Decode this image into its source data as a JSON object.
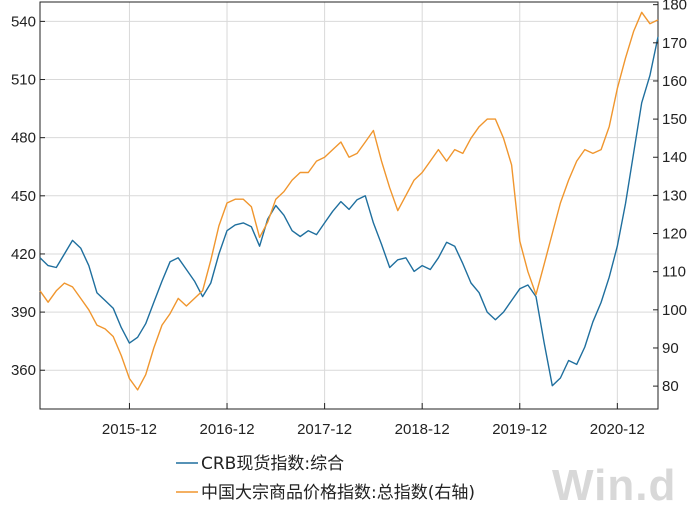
{
  "chart_data": {
    "type": "line",
    "title": "",
    "xlabel": "",
    "x_tick_labels": [
      "2015-12",
      "2016-12",
      "2017-12",
      "2018-12",
      "2019-12",
      "2020-12"
    ],
    "x_range": [
      "2015-01",
      "2021-05"
    ],
    "y_left": {
      "ylim": [
        340,
        550
      ],
      "ticks": [
        360,
        390,
        420,
        450,
        480,
        510,
        540
      ]
    },
    "y_right": {
      "ylim": [
        74,
        180.7
      ],
      "ticks": [
        80,
        90,
        100,
        110,
        120,
        130,
        140,
        150,
        160,
        170,
        180
      ]
    },
    "grid": true,
    "legend_position": "bottom",
    "series": [
      {
        "name": "CRB现货指数:综合",
        "axis": "left",
        "color": "#1f6f9e",
        "points": [
          [
            "2015-01",
            418
          ],
          [
            "2015-02",
            414
          ],
          [
            "2015-03",
            413
          ],
          [
            "2015-04",
            420
          ],
          [
            "2015-05",
            427
          ],
          [
            "2015-06",
            423
          ],
          [
            "2015-07",
            414
          ],
          [
            "2015-08",
            400
          ],
          [
            "2015-09",
            396
          ],
          [
            "2015-10",
            392
          ],
          [
            "2015-11",
            382
          ],
          [
            "2015-12",
            374
          ],
          [
            "2016-01",
            377
          ],
          [
            "2016-02",
            384
          ],
          [
            "2016-03",
            395
          ],
          [
            "2016-04",
            406
          ],
          [
            "2016-05",
            416
          ],
          [
            "2016-06",
            418
          ],
          [
            "2016-07",
            412
          ],
          [
            "2016-08",
            406
          ],
          [
            "2016-09",
            398
          ],
          [
            "2016-10",
            405
          ],
          [
            "2016-11",
            420
          ],
          [
            "2016-12",
            432
          ],
          [
            "2017-01",
            435
          ],
          [
            "2017-02",
            436
          ],
          [
            "2017-03",
            434
          ],
          [
            "2017-04",
            424
          ],
          [
            "2017-05",
            438
          ],
          [
            "2017-06",
            445
          ],
          [
            "2017-07",
            440
          ],
          [
            "2017-08",
            432
          ],
          [
            "2017-09",
            429
          ],
          [
            "2017-10",
            432
          ],
          [
            "2017-11",
            430
          ],
          [
            "2017-12",
            436
          ],
          [
            "2018-01",
            442
          ],
          [
            "2018-02",
            447
          ],
          [
            "2018-03",
            443
          ],
          [
            "2018-04",
            448
          ],
          [
            "2018-05",
            450
          ],
          [
            "2018-06",
            436
          ],
          [
            "2018-07",
            425
          ],
          [
            "2018-08",
            413
          ],
          [
            "2018-09",
            417
          ],
          [
            "2018-10",
            418
          ],
          [
            "2018-11",
            411
          ],
          [
            "2018-12",
            414
          ],
          [
            "2019-01",
            412
          ],
          [
            "2019-02",
            418
          ],
          [
            "2019-03",
            426
          ],
          [
            "2019-04",
            424
          ],
          [
            "2019-05",
            415
          ],
          [
            "2019-06",
            405
          ],
          [
            "2019-07",
            400
          ],
          [
            "2019-08",
            390
          ],
          [
            "2019-09",
            386
          ],
          [
            "2019-10",
            390
          ],
          [
            "2019-11",
            396
          ],
          [
            "2019-12",
            402
          ],
          [
            "2020-01",
            404
          ],
          [
            "2020-02",
            398
          ],
          [
            "2020-03",
            374
          ],
          [
            "2020-04",
            352
          ],
          [
            "2020-05",
            356
          ],
          [
            "2020-06",
            365
          ],
          [
            "2020-07",
            363
          ],
          [
            "2020-08",
            372
          ],
          [
            "2020-09",
            385
          ],
          [
            "2020-10",
            395
          ],
          [
            "2020-11",
            408
          ],
          [
            "2020-12",
            424
          ],
          [
            "2021-01",
            446
          ],
          [
            "2021-02",
            472
          ],
          [
            "2021-03",
            498
          ],
          [
            "2021-04",
            512
          ],
          [
            "2021-05",
            532
          ]
        ]
      },
      {
        "name": "中国大宗商品价格指数:总指数(右轴)",
        "axis": "right",
        "color": "#f0962e",
        "points": [
          [
            "2015-01",
            105
          ],
          [
            "2015-02",
            102
          ],
          [
            "2015-03",
            105
          ],
          [
            "2015-04",
            107
          ],
          [
            "2015-05",
            106
          ],
          [
            "2015-06",
            103
          ],
          [
            "2015-07",
            100
          ],
          [
            "2015-08",
            96
          ],
          [
            "2015-09",
            95
          ],
          [
            "2015-10",
            93
          ],
          [
            "2015-11",
            88
          ],
          [
            "2015-12",
            82
          ],
          [
            "2016-01",
            79
          ],
          [
            "2016-02",
            83
          ],
          [
            "2016-03",
            90
          ],
          [
            "2016-04",
            96
          ],
          [
            "2016-05",
            99
          ],
          [
            "2016-06",
            103
          ],
          [
            "2016-07",
            101
          ],
          [
            "2016-08",
            103
          ],
          [
            "2016-09",
            105
          ],
          [
            "2016-10",
            113
          ],
          [
            "2016-11",
            122
          ],
          [
            "2016-12",
            128
          ],
          [
            "2017-01",
            129
          ],
          [
            "2017-02",
            129
          ],
          [
            "2017-03",
            127
          ],
          [
            "2017-04",
            119
          ],
          [
            "2017-05",
            123
          ],
          [
            "2017-06",
            129
          ],
          [
            "2017-07",
            131
          ],
          [
            "2017-08",
            134
          ],
          [
            "2017-09",
            136
          ],
          [
            "2017-10",
            136
          ],
          [
            "2017-11",
            139
          ],
          [
            "2017-12",
            140
          ],
          [
            "2018-01",
            142
          ],
          [
            "2018-02",
            144
          ],
          [
            "2018-03",
            140
          ],
          [
            "2018-04",
            141
          ],
          [
            "2018-05",
            144
          ],
          [
            "2018-06",
            147
          ],
          [
            "2018-07",
            139
          ],
          [
            "2018-08",
            132
          ],
          [
            "2018-09",
            126
          ],
          [
            "2018-10",
            130
          ],
          [
            "2018-11",
            134
          ],
          [
            "2018-12",
            136
          ],
          [
            "2019-01",
            139
          ],
          [
            "2019-02",
            142
          ],
          [
            "2019-03",
            139
          ],
          [
            "2019-04",
            142
          ],
          [
            "2019-05",
            141
          ],
          [
            "2019-06",
            145
          ],
          [
            "2019-07",
            148
          ],
          [
            "2019-08",
            150
          ],
          [
            "2019-09",
            150
          ],
          [
            "2019-10",
            145
          ],
          [
            "2019-11",
            138
          ],
          [
            "2019-12",
            118
          ],
          [
            "2020-01",
            110
          ],
          [
            "2020-02",
            104
          ],
          [
            "2020-03",
            112
          ],
          [
            "2020-04",
            120
          ],
          [
            "2020-05",
            128
          ],
          [
            "2020-06",
            134
          ],
          [
            "2020-07",
            139
          ],
          [
            "2020-08",
            142
          ],
          [
            "2020-09",
            141
          ],
          [
            "2020-10",
            142
          ],
          [
            "2020-11",
            148
          ],
          [
            "2020-12",
            158
          ],
          [
            "2021-01",
            166
          ],
          [
            "2021-02",
            173
          ],
          [
            "2021-03",
            178
          ],
          [
            "2021-04",
            175
          ],
          [
            "2021-05",
            176
          ]
        ]
      }
    ]
  },
  "watermark": "Win.d"
}
